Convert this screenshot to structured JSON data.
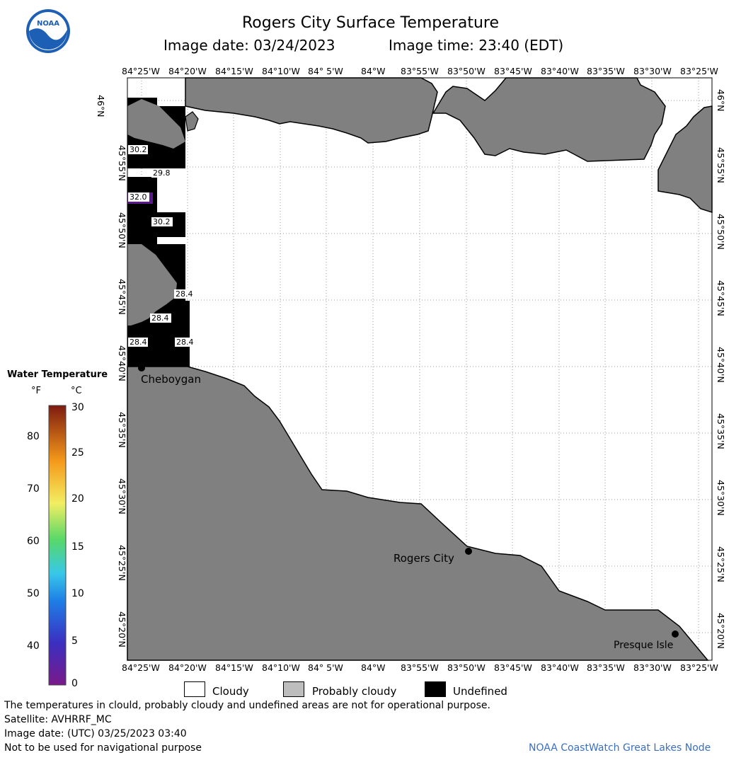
{
  "header": {
    "title": "Rogers City Surface Temperature",
    "date_label": "Image date: 03/24/2023",
    "time_label": "Image time: 23:40 (EDT)"
  },
  "logo": {
    "icon": "noaa-logo-icon",
    "text": "NOAA"
  },
  "axes": {
    "lon_top": [
      "84°25'W",
      "84°20'W",
      "84°15'W",
      "84°10'W",
      "84° 5'W",
      "84°W",
      "83°55'W",
      "83°50'W",
      "83°45'W",
      "83°40'W",
      "83°35'W",
      "83°30'W",
      "83°25'W"
    ],
    "lon_bottom": [
      "84°25'W",
      "84°20'W",
      "84°15'W",
      "84°10'W",
      "84° 5'W",
      "84°W",
      "83°55'W",
      "83°50'W",
      "83°45'W",
      "83°40'W",
      "83°35'W",
      "83°30'W",
      "83°25'W"
    ],
    "lat": [
      "46°N",
      "45°55'N",
      "45°50'N",
      "45°45'N",
      "45°40'N",
      "45°35'N",
      "45°30'N",
      "45°25'N",
      "45°20'N"
    ]
  },
  "places": {
    "cheboygan": "Cheboygan",
    "rogers_city": "Rogers City",
    "presque_isle": "Presque Isle"
  },
  "temps": [
    "30.2",
    "29.8",
    "32.0",
    "30.2",
    "28.4",
    "28.4",
    "28.4",
    "28.4"
  ],
  "colorbar": {
    "title": "Water Temperature",
    "unit_f": "°F",
    "unit_c": "°C",
    "f_ticks": [
      "80",
      "70",
      "60",
      "50",
      "40"
    ],
    "c_ticks": [
      "30",
      "25",
      "20",
      "15",
      "10",
      "5",
      "0"
    ]
  },
  "legend": {
    "cloudy": "Cloudy",
    "probably_cloudy": "Probably cloudy",
    "undefined": "Undefined"
  },
  "footer": {
    "line1": "The temperatures in clould, probably cloudy and undefined areas are not for operational purpose.",
    "line2": "Satellite: AVHRRF_MC",
    "line3": "Image date: (UTC) 03/25/2023  03:40",
    "line4": "Not to be used for navigational purpose",
    "credit": "NOAA CoastWatch Great Lakes Node"
  },
  "colors": {
    "land": "#808080",
    "cloudy": "#ffffff",
    "probably_cloudy": "#bdbdbd",
    "undefined": "#000000",
    "credit": "#3a6fc4"
  }
}
